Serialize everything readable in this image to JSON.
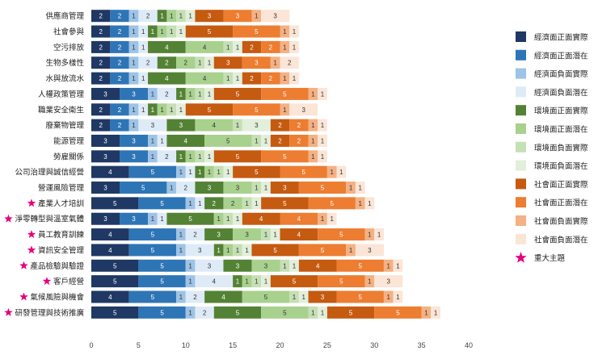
{
  "chart_data": {
    "type": "bar",
    "orientation": "horizontal",
    "stacked": true,
    "title": "",
    "xlabel": "",
    "ylabel": "",
    "xlim": [
      0,
      40
    ],
    "xticks": [
      0,
      5,
      10,
      15,
      20,
      25,
      30,
      35,
      40
    ],
    "grid": false,
    "legend_position": "right",
    "categories": [
      "供應商管理",
      "社會參與",
      "空污排放",
      "生物多樣性",
      "水與放流水",
      "人權政策管理",
      "職業安全衛生",
      "廢棄物管理",
      "能源管理",
      "勞雇關係",
      "公司治理與誠信經營",
      "營運風險管理",
      "產業人才培訓",
      "淨零轉型與溫室氣體",
      "員工教育訓練",
      "資訊安全管理",
      "產品檢驗與驗證",
      "客戶經營",
      "氣候風險與機會",
      "研發管理與技術推廣"
    ],
    "starred": [
      false,
      false,
      false,
      false,
      false,
      false,
      false,
      false,
      false,
      false,
      false,
      false,
      true,
      true,
      true,
      true,
      true,
      true,
      true,
      true
    ],
    "series": [
      {
        "name": "經濟面正面實際",
        "color": "#1f3864",
        "values": [
          2,
          2,
          2,
          2,
          2,
          3,
          2,
          2,
          3,
          3,
          4,
          3,
          5,
          3,
          4,
          4,
          5,
          5,
          4,
          5
        ]
      },
      {
        "name": "經濟面正面潛在",
        "color": "#2e75b6",
        "values": [
          2,
          2,
          2,
          2,
          2,
          3,
          2,
          2,
          3,
          3,
          5,
          5,
          5,
          3,
          5,
          5,
          5,
          5,
          5,
          5
        ]
      },
      {
        "name": "經濟面負面實際",
        "color": "#9dc3e6",
        "values": [
          1,
          1,
          1,
          1,
          1,
          1,
          1,
          1,
          1,
          1,
          1,
          1,
          1,
          1,
          1,
          1,
          1,
          1,
          1,
          1
        ]
      },
      {
        "name": "經濟面負面潛在",
        "color": "#deebf7",
        "values": [
          2,
          1,
          1,
          2,
          1,
          2,
          1,
          3,
          1,
          2,
          1,
          2,
          1,
          1,
          2,
          3,
          3,
          4,
          2,
          2
        ]
      },
      {
        "name": "環境面正面實際",
        "color": "#548235",
        "values": [
          1,
          1,
          4,
          2,
          4,
          1,
          1,
          3,
          4,
          1,
          1,
          3,
          2,
          5,
          3,
          1,
          3,
          1,
          4,
          5
        ]
      },
      {
        "name": "環境面正面潛在",
        "color": "#a9d18e",
        "values": [
          1,
          1,
          4,
          2,
          4,
          1,
          1,
          4,
          5,
          1,
          1,
          3,
          2,
          1,
          3,
          1,
          3,
          1,
          5,
          5
        ]
      },
      {
        "name": "環境面負面實際",
        "color": "#c5e0b4",
        "values": [
          1,
          1,
          1,
          1,
          1,
          1,
          1,
          1,
          1,
          1,
          1,
          1,
          1,
          1,
          1,
          1,
          1,
          1,
          1,
          1
        ]
      },
      {
        "name": "環境面負面潛在",
        "color": "#e2efda",
        "values": [
          1,
          1,
          1,
          1,
          1,
          1,
          1,
          3,
          1,
          1,
          1,
          1,
          1,
          1,
          1,
          1,
          1,
          1,
          1,
          1
        ]
      },
      {
        "name": "社會面正面實際",
        "color": "#c55a11",
        "values": [
          3,
          5,
          2,
          3,
          2,
          5,
          5,
          2,
          2,
          5,
          5,
          3,
          5,
          4,
          4,
          5,
          4,
          5,
          3,
          5
        ]
      },
      {
        "name": "社會面正面潛在",
        "color": "#ed7d31",
        "values": [
          3,
          5,
          2,
          3,
          2,
          5,
          5,
          2,
          2,
          5,
          5,
          5,
          5,
          4,
          5,
          5,
          5,
          5,
          5,
          5
        ]
      },
      {
        "name": "社會面負面實際",
        "color": "#f4b183",
        "values": [
          1,
          1,
          1,
          1,
          1,
          1,
          1,
          1,
          1,
          1,
          1,
          1,
          1,
          1,
          1,
          1,
          1,
          1,
          1,
          1
        ]
      },
      {
        "name": "社會面負面潛在",
        "color": "#fbe5d6",
        "values": [
          3,
          1,
          1,
          2,
          1,
          1,
          3,
          1,
          1,
          1,
          1,
          1,
          1,
          1,
          1,
          3,
          1,
          3,
          1,
          1
        ]
      }
    ],
    "legend_extra": {
      "name": "重大主題",
      "color": "#e6007e"
    }
  }
}
